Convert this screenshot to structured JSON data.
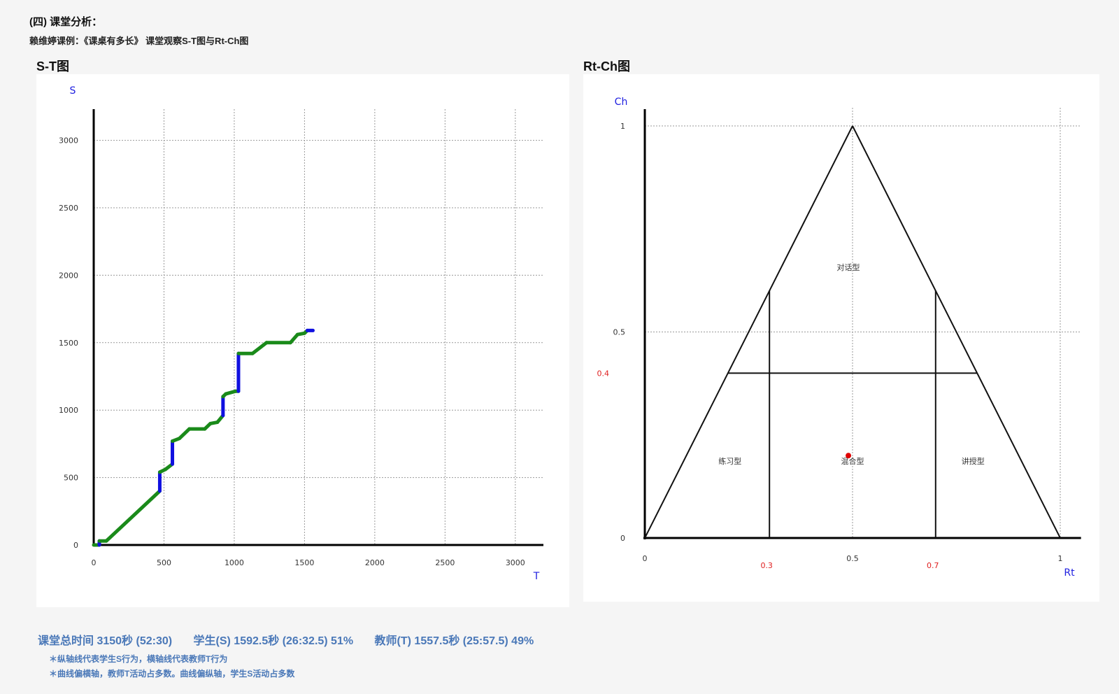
{
  "header": {
    "section_title": "(四) 课堂分析：",
    "subtitle": "赖维婷课例：《课桌有多长》 课堂观察S-T图与Rt-Ch图"
  },
  "st_title": "S-T图",
  "rc_title": "Rt-Ch图",
  "stats": {
    "total": "课堂总时间 3150秒 (52:30)",
    "student": "学生(S) 1592.5秒 (26:32.5) 51%",
    "teacher": "教师(T) 1557.5秒 (25:57.5) 49%"
  },
  "notes": [
    "＊纵轴线代表学生S行为，横轴线代表教师T行为",
    "＊曲线偏横轴，教师T活动占多数。曲线偏纵轴，学生S活动占多数"
  ],
  "colors": {
    "teacher_line": "#1a8a1a",
    "student_line": "#1010e0",
    "axis_label": "#2020e0",
    "boundary_label": "#e02020",
    "point": "#e00000",
    "stats_text": "#4a78b8"
  },
  "chart_data": [
    {
      "type": "line",
      "title": "S-T图",
      "xlabel": "T",
      "ylabel": "S",
      "xlim": [
        0,
        3200
      ],
      "ylim": [
        0,
        3200
      ],
      "x_ticks": [
        "0",
        "500",
        "1000",
        "1500",
        "2000",
        "2500",
        "3000"
      ],
      "y_ticks": [
        "0",
        "500",
        "1000",
        "1500",
        "2000",
        "2500",
        "3000"
      ],
      "grid": true,
      "series": [
        {
          "points": [
            [
              0,
              0
            ],
            [
              40,
              0
            ],
            [
              40,
              30
            ],
            [
              90,
              30
            ],
            [
              470,
              400
            ],
            [
              470,
              540
            ],
            [
              510,
              560
            ],
            [
              560,
              600
            ],
            [
              560,
              770
            ],
            [
              610,
              790
            ],
            [
              680,
              860
            ],
            [
              790,
              860
            ],
            [
              830,
              900
            ],
            [
              880,
              910
            ],
            [
              920,
              960
            ],
            [
              920,
              1100
            ],
            [
              940,
              1120
            ],
            [
              1010,
              1140
            ],
            [
              1030,
              1140
            ],
            [
              1030,
              1420
            ],
            [
              1130,
              1420
            ],
            [
              1230,
              1500
            ],
            [
              1400,
              1500
            ],
            [
              1450,
              1560
            ],
            [
              1500,
              1570
            ],
            [
              1520,
              1590
            ],
            [
              1560,
              1590
            ]
          ],
          "segment_roles": [
            "T",
            "S",
            "T",
            "T",
            "S",
            "T",
            "T",
            "S",
            "T",
            "T",
            "T",
            "T",
            "T",
            "T",
            "S",
            "T",
            "T",
            "T",
            "S",
            "T",
            "T",
            "T",
            "T",
            "T",
            "T",
            "S"
          ]
        }
      ]
    },
    {
      "type": "scatter",
      "title": "Rt-Ch图",
      "xlabel": "Rt",
      "ylabel": "Ch",
      "xlim": [
        0,
        1.05
      ],
      "ylim": [
        0,
        1.05
      ],
      "x_ticks": [
        "0",
        "0.5",
        "1"
      ],
      "y_ticks": [
        "0",
        "0.5",
        "1"
      ],
      "boundary_labels": {
        "x": [
          "0.3",
          "0.7"
        ],
        "y": [
          "0.4"
        ]
      },
      "region_labels": [
        "对话型",
        "练习型",
        "混合型",
        "讲授型"
      ],
      "grid": true,
      "points": [
        {
          "x": 0.49,
          "y": 0.2
        }
      ]
    }
  ]
}
